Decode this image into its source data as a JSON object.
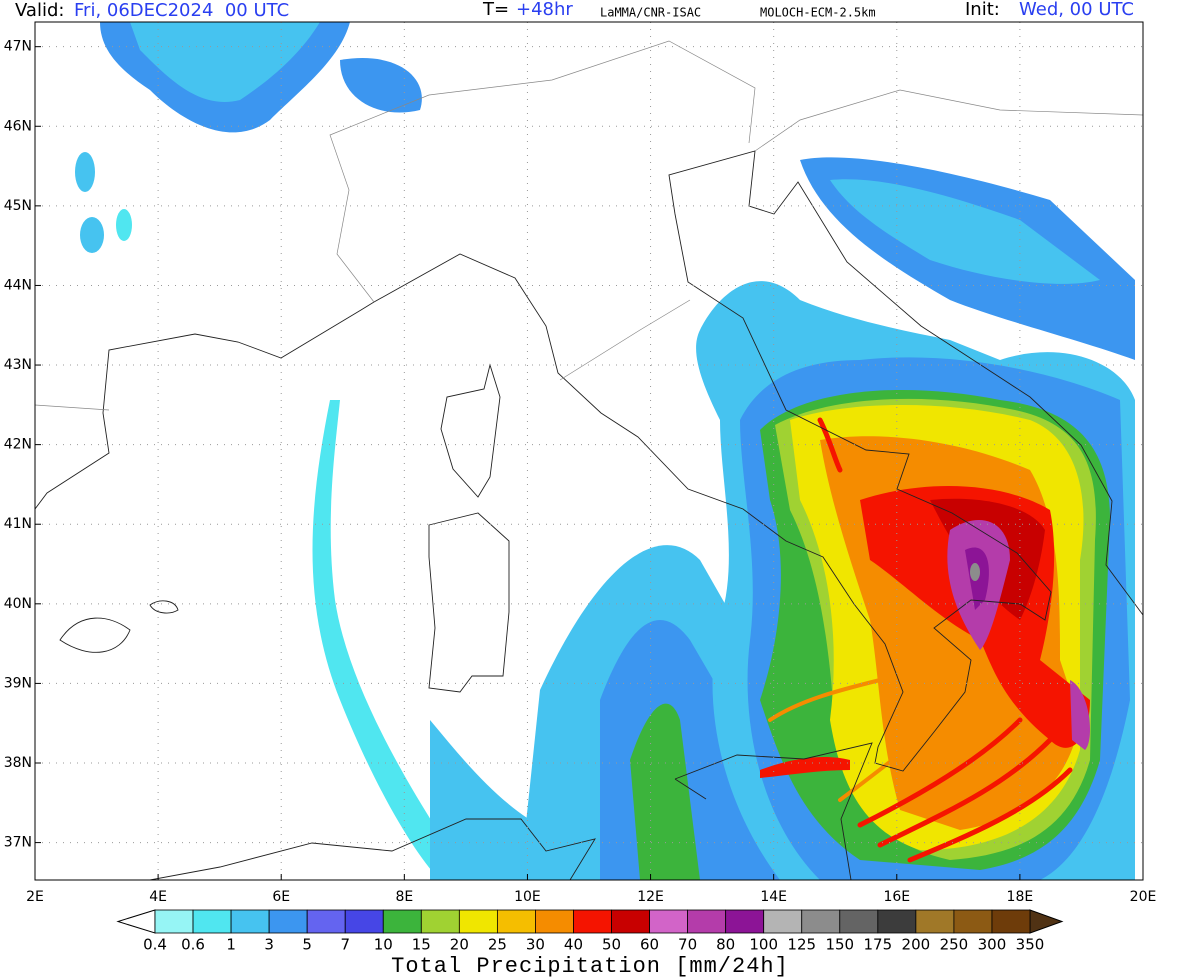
{
  "header": {
    "valid_label": "Valid:",
    "valid_value": "Fri, 06DEC2024  00 UTC",
    "step_label": "T=",
    "step_value": "+48hr",
    "source": "LaMMA/CNR-ISAC",
    "model": "MOLOCH-ECM-2.5km",
    "init_label": "Init:",
    "init_value": "Wed, 00 UTC"
  },
  "map": {
    "lonlim": [
      2,
      20
    ],
    "latlim": [
      36.53,
      47.31
    ],
    "lon_ticks": [
      {
        "value": 2,
        "label": "2E"
      },
      {
        "value": 4,
        "label": "4E"
      },
      {
        "value": 6,
        "label": "6E"
      },
      {
        "value": 8,
        "label": "8E"
      },
      {
        "value": 10,
        "label": "10E"
      },
      {
        "value": 12,
        "label": "12E"
      },
      {
        "value": 14,
        "label": "14E"
      },
      {
        "value": 16,
        "label": "16E"
      },
      {
        "value": 18,
        "label": "18E"
      },
      {
        "value": 20,
        "label": "20E"
      }
    ],
    "lat_ticks": [
      {
        "value": 37,
        "label": "37N"
      },
      {
        "value": 38,
        "label": "38N"
      },
      {
        "value": 39,
        "label": "39N"
      },
      {
        "value": 40,
        "label": "40N"
      },
      {
        "value": 41,
        "label": "41N"
      },
      {
        "value": 42,
        "label": "42N"
      },
      {
        "value": 43,
        "label": "43N"
      },
      {
        "value": 44,
        "label": "44N"
      },
      {
        "value": 45,
        "label": "45N"
      },
      {
        "value": 46,
        "label": "46N"
      },
      {
        "value": 47,
        "label": "47N"
      }
    ]
  },
  "colorbar": {
    "title": "Total Precipitation [mm/24h]",
    "levels": [
      0.4,
      0.6,
      1,
      3,
      5,
      7,
      10,
      15,
      20,
      25,
      30,
      40,
      50,
      60,
      70,
      80,
      100,
      125,
      150,
      175,
      200,
      250,
      300,
      350
    ],
    "under_color": "#ffffff",
    "colors": [
      "#96f5f5",
      "#50e6f0",
      "#46c3f0",
      "#3c96f0",
      "#6464f0",
      "#4646e6",
      "#3cb43c",
      "#a0d232",
      "#f0e600",
      "#f5be00",
      "#f58c00",
      "#f51400",
      "#c80000",
      "#d264c8",
      "#b43caa",
      "#8c1496",
      "#b4b4b4",
      "#8c8c8c",
      "#646464",
      "#3c3c3c",
      "#a07828",
      "#8c5a14",
      "#6e3c0a"
    ],
    "over_color": "#503214"
  }
}
